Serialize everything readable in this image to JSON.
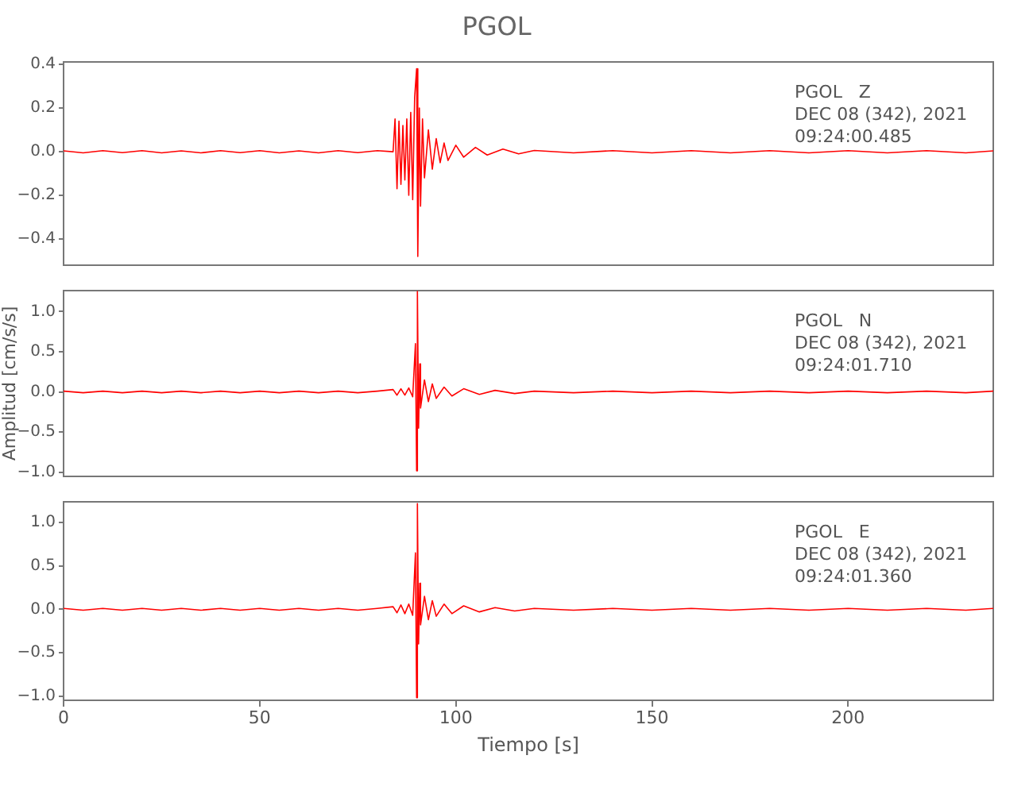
{
  "chart_data": [
    {
      "type": "line",
      "title": "PGOL",
      "annotations": [
        "PGOL   Z",
        "DEC 08 (342), 2021",
        "09:24:00.485"
      ],
      "x": [
        0,
        5,
        10,
        15,
        20,
        25,
        30,
        35,
        40,
        45,
        50,
        55,
        60,
        65,
        70,
        75,
        80,
        84,
        84.5,
        85,
        85.5,
        86,
        86.5,
        87,
        87.5,
        88,
        88.5,
        89,
        89.5,
        90,
        90.3,
        90.7,
        91,
        91.5,
        92,
        93,
        94,
        95,
        96,
        97,
        98,
        100,
        102,
        105,
        108,
        112,
        116,
        120,
        130,
        140,
        150,
        160,
        170,
        180,
        190,
        200,
        210,
        220,
        230,
        237
      ],
      "series": [
        {
          "color": "#ff0000",
          "values": [
            0.004,
            -0.005,
            0.005,
            -0.004,
            0.005,
            -0.005,
            0.004,
            -0.005,
            0.005,
            -0.004,
            0.005,
            -0.005,
            0.004,
            -0.005,
            0.005,
            -0.004,
            0.005,
            0,
            0.15,
            -0.17,
            0.14,
            -0.15,
            0.12,
            -0.13,
            0.15,
            -0.2,
            0.18,
            -0.22,
            0.25,
            0.38,
            -0.48,
            0.2,
            -0.25,
            0.15,
            -0.12,
            0.1,
            -0.08,
            0.06,
            -0.05,
            0.04,
            -0.04,
            0.03,
            -0.025,
            0.02,
            -0.015,
            0.012,
            -0.01,
            0.006,
            -0.005,
            0.005,
            -0.005,
            0.005,
            -0.005,
            0.005,
            -0.005,
            0.005,
            -0.005,
            0.005,
            -0.005,
            0.004
          ]
        }
      ],
      "xlim": [
        0,
        237
      ],
      "xticks": [
        0,
        50,
        100,
        150,
        200
      ],
      "ylim": [
        -0.52,
        0.41
      ],
      "yticks": [
        {
          "value": -0.4,
          "label": "−0.4"
        },
        {
          "value": -0.2,
          "label": "−0.2"
        },
        {
          "value": 0,
          "label": "0.0"
        },
        {
          "value": 0.2,
          "label": "0.2"
        },
        {
          "value": 0.4,
          "label": "0.4"
        }
      ],
      "tick_labels": "y",
      "grid": false,
      "legend": false,
      "marker": "none",
      "line_style": "solid"
    },
    {
      "type": "line",
      "ylabel": "Amplitud [cm/s/s]",
      "annotations": [
        "PGOL   N",
        "DEC 08 (342), 2021",
        "09:24:01.710"
      ],
      "x": [
        0,
        5,
        10,
        15,
        20,
        25,
        30,
        35,
        40,
        45,
        50,
        55,
        60,
        65,
        70,
        75,
        80,
        84,
        85,
        86,
        87,
        88,
        89,
        89.7,
        90,
        90.2,
        90.5,
        90.8,
        91,
        92,
        93,
        94,
        95,
        97,
        99,
        102,
        106,
        110,
        115,
        120,
        130,
        140,
        150,
        160,
        170,
        180,
        190,
        200,
        210,
        220,
        230,
        237
      ],
      "series": [
        {
          "color": "#ff0000",
          "values": [
            0.01,
            -0.01,
            0.01,
            -0.01,
            0.01,
            -0.01,
            0.01,
            -0.01,
            0.01,
            -0.01,
            0.01,
            -0.01,
            0.01,
            -0.01,
            0.01,
            -0.01,
            0.01,
            0.03,
            -0.04,
            0.04,
            -0.04,
            0.05,
            -0.06,
            0.6,
            -0.98,
            1.25,
            -0.45,
            0.35,
            -0.2,
            0.15,
            -0.12,
            0.1,
            -0.08,
            0.06,
            -0.05,
            0.04,
            -0.03,
            0.02,
            -0.02,
            0.01,
            -0.01,
            0.01,
            -0.01,
            0.01,
            -0.01,
            0.01,
            -0.01,
            0.01,
            -0.01,
            0.01,
            -0.01,
            0.01
          ]
        }
      ],
      "xlim": [
        0,
        237
      ],
      "xticks": [
        0,
        50,
        100,
        150,
        200
      ],
      "ylim": [
        -1.05,
        1.26
      ],
      "yticks": [
        {
          "value": -1,
          "label": "−1.0"
        },
        {
          "value": -0.5,
          "label": "−0.5"
        },
        {
          "value": 0,
          "label": "0.0"
        },
        {
          "value": 0.5,
          "label": "0.5"
        },
        {
          "value": 1,
          "label": "1.0"
        }
      ],
      "tick_labels": "y",
      "grid": false,
      "legend": false,
      "marker": "none",
      "line_style": "solid"
    },
    {
      "type": "line",
      "xlabel": "Tiempo [s]",
      "annotations": [
        "PGOL   E",
        "DEC 08 (342), 2021",
        "09:24:01.360"
      ],
      "x": [
        0,
        5,
        10,
        15,
        20,
        25,
        30,
        35,
        40,
        45,
        50,
        55,
        60,
        65,
        70,
        75,
        80,
        84,
        85,
        86,
        87,
        88,
        89,
        89.7,
        90,
        90.2,
        90.5,
        90.8,
        91,
        92,
        93,
        94,
        95,
        97,
        99,
        102,
        106,
        110,
        115,
        120,
        130,
        140,
        150,
        160,
        170,
        180,
        190,
        200,
        210,
        220,
        230,
        237
      ],
      "series": [
        {
          "color": "#ff0000",
          "values": [
            0.01,
            -0.01,
            0.01,
            -0.01,
            0.01,
            -0.01,
            0.01,
            -0.01,
            0.01,
            -0.01,
            0.01,
            -0.01,
            0.01,
            -0.01,
            0.01,
            -0.01,
            0.01,
            0.03,
            -0.04,
            0.05,
            -0.05,
            0.06,
            -0.07,
            0.65,
            -1.02,
            1.22,
            -0.4,
            0.3,
            -0.18,
            0.15,
            -0.12,
            0.1,
            -0.08,
            0.06,
            -0.05,
            0.04,
            -0.03,
            0.02,
            -0.02,
            0.01,
            -0.01,
            0.01,
            -0.01,
            0.01,
            -0.01,
            0.01,
            -0.01,
            0.01,
            -0.01,
            0.01,
            -0.01,
            0.01
          ]
        }
      ],
      "xlim": [
        0,
        237
      ],
      "xticks": [
        0,
        50,
        100,
        150,
        200
      ],
      "ylim": [
        -1.05,
        1.24
      ],
      "yticks": [
        {
          "value": -1,
          "label": "−1.0"
        },
        {
          "value": -0.5,
          "label": "−0.5"
        },
        {
          "value": 0,
          "label": "0.0"
        },
        {
          "value": 0.5,
          "label": "0.5"
        },
        {
          "value": 1,
          "label": "1.0"
        }
      ],
      "grid": false,
      "legend": false,
      "marker": "none",
      "line_style": "solid"
    }
  ]
}
